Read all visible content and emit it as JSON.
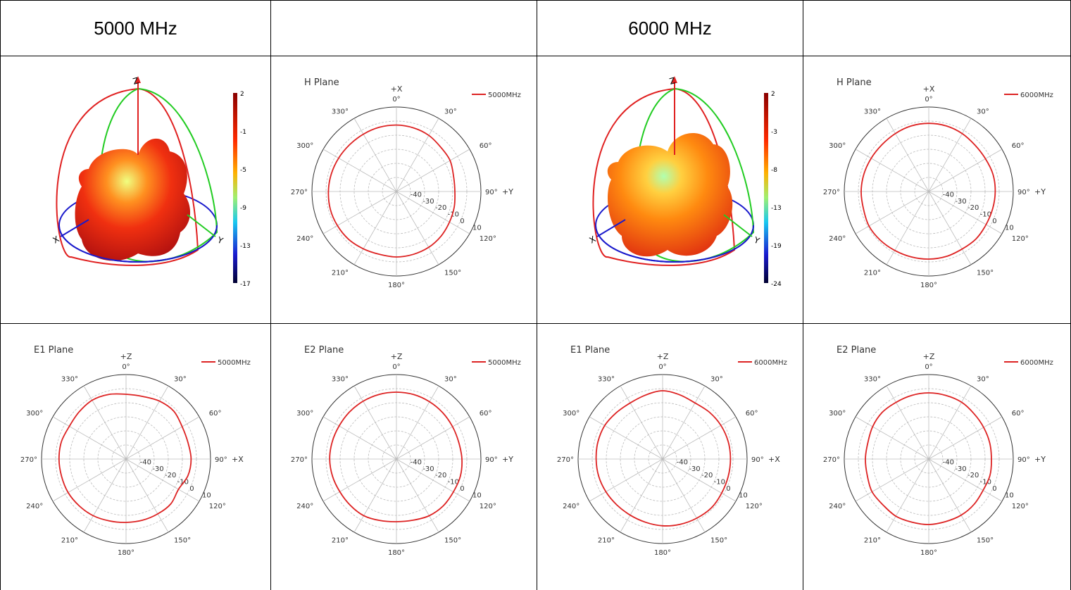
{
  "header": [
    "5000 MHz",
    "",
    "6000 MHz",
    ""
  ],
  "colors": {
    "trace": "#dd2222",
    "grid": "#bbbbbb",
    "axis": "#333333",
    "red": "#e02020",
    "green": "#22cc22",
    "blue": "#1a1acc"
  },
  "patterns3d": [
    {
      "name": "5000 MHz 3D",
      "axes": {
        "z": "Z",
        "x": "X",
        "y": "Y"
      },
      "scale": [
        "2",
        "-1",
        "-5",
        "-9",
        "-13",
        "-17"
      ]
    },
    {
      "name": "6000 MHz 3D",
      "axes": {
        "z": "Z",
        "x": "X",
        "y": "Y"
      },
      "scale": [
        "2",
        "-3",
        "-8",
        "-13",
        "-19",
        "-24"
      ]
    }
  ],
  "polar_common": {
    "angle_labels": [
      "0°",
      "30°",
      "60°",
      "90°",
      "120°",
      "150°",
      "180°",
      "210°",
      "240°",
      "270°",
      "300°",
      "330°"
    ],
    "radial_labels": [
      "-40",
      "-30",
      "-20",
      "-10",
      "0",
      "10"
    ]
  },
  "polars": [
    {
      "id": "h5000",
      "title": "H Plane",
      "top_axis": "+X",
      "right_axis": "+Y",
      "legend": "5000MHz"
    },
    {
      "id": "h6000",
      "title": "H Plane",
      "top_axis": "+X",
      "right_axis": "+Y",
      "legend": "6000MHz"
    },
    {
      "id": "e1_5000",
      "title": "E1 Plane",
      "top_axis": "+Z",
      "right_axis": "+X",
      "legend": "5000MHz"
    },
    {
      "id": "e2_5000",
      "title": "E2 Plane",
      "top_axis": "+Z",
      "right_axis": "+Y",
      "legend": "5000MHz"
    },
    {
      "id": "e1_6000",
      "title": "E1 Plane",
      "top_axis": "+Z",
      "right_axis": "+X",
      "legend": "6000MHz"
    },
    {
      "id": "e2_6000",
      "title": "E2 Plane",
      "top_axis": "+Z",
      "right_axis": "+Y",
      "legend": "6000MHz"
    }
  ],
  "chart_data": [
    {
      "type": "line",
      "title": "H Plane",
      "series": [
        {
          "name": "5000MHz",
          "theta": [
            0,
            15,
            30,
            45,
            60,
            75,
            90,
            105,
            120,
            135,
            150,
            165,
            180,
            195,
            210,
            225,
            240,
            255,
            270,
            285,
            300,
            315,
            330,
            345
          ],
          "r": [
            -2.8,
            -3.2,
            -4.0,
            -5.5,
            -6.0,
            -8.0,
            -8.5,
            -7.5,
            -6.5,
            -5.2,
            -4.2,
            -3.8,
            -3.5,
            -3.8,
            -3.0,
            -2.0,
            -1.6,
            -1.4,
            -1.7,
            -2.1,
            -2.6,
            -3.0,
            -3.0,
            -2.8
          ]
        }
      ]
    },
    {
      "type": "line",
      "title": "H Plane",
      "series": [
        {
          "name": "6000MHz",
          "theta": [
            0,
            15,
            30,
            45,
            60,
            75,
            90,
            105,
            120,
            135,
            150,
            165,
            180,
            195,
            210,
            225,
            240,
            255,
            270,
            285,
            300,
            315,
            330,
            345
          ],
          "r": [
            -1.6,
            -1.8,
            -2.5,
            -3.5,
            -3.5,
            -2.8,
            -2.8,
            -3.0,
            -3.0,
            -2.5,
            -2.8,
            -2.2,
            -2.0,
            -1.9,
            -1.7,
            -1.2,
            -1.0,
            -2.0,
            -2.0,
            -2.3,
            -2.8,
            -3.0,
            -2.5,
            -1.8
          ]
        }
      ]
    },
    {
      "type": "line",
      "title": "E1 Plane",
      "series": [
        {
          "name": "5000MHz",
          "theta": [
            0,
            15,
            30,
            45,
            60,
            75,
            90,
            105,
            120,
            135,
            150,
            165,
            180,
            195,
            210,
            225,
            240,
            255,
            270,
            285,
            300,
            315,
            330,
            345
          ],
          "r": [
            -4.0,
            -4.0,
            -2.5,
            -2.0,
            -4.0,
            -4.5,
            -3.8,
            -4.5,
            -7.0,
            -5.0,
            -5.0,
            -5.0,
            -5.0,
            -4.5,
            -3.5,
            -3.0,
            -2.5,
            -2.6,
            -2.4,
            -2.5,
            -3.5,
            -2.8,
            -1.8,
            -2.5
          ]
        }
      ]
    },
    {
      "type": "line",
      "title": "E2 Plane",
      "series": [
        {
          "name": "5000MHz",
          "theta": [
            0,
            15,
            30,
            45,
            60,
            75,
            90,
            105,
            120,
            135,
            150,
            165,
            180,
            195,
            210,
            225,
            240,
            255,
            270,
            285,
            300,
            315,
            330,
            345
          ],
          "r": [
            -2.5,
            -2.6,
            -3.0,
            -3.5,
            -4.0,
            -4.2,
            -3.5,
            -3.0,
            -3.3,
            -3.0,
            -3.5,
            -5.0,
            -5.5,
            -4.8,
            -3.6,
            -3.6,
            -3.6,
            -3.0,
            -2.6,
            -2.8,
            -3.0,
            -2.8,
            -2.6,
            -2.5
          ]
        }
      ]
    },
    {
      "type": "line",
      "title": "E1 Plane",
      "series": [
        {
          "name": "6000MHz",
          "theta": [
            0,
            15,
            30,
            45,
            60,
            75,
            90,
            105,
            120,
            135,
            150,
            165,
            180,
            195,
            210,
            225,
            240,
            255,
            270,
            285,
            300,
            315,
            330,
            345
          ],
          "r": [
            -1.5,
            -2.8,
            -4.0,
            -3.0,
            -2.2,
            -1.8,
            -1.8,
            -1.8,
            -1.6,
            -1.0,
            -1.5,
            -2.0,
            -2.6,
            -3.5,
            -4.0,
            -4.0,
            -3.5,
            -3.0,
            -2.8,
            -2.5,
            -2.5,
            -3.5,
            -4.0,
            -3.0
          ]
        }
      ]
    },
    {
      "type": "line",
      "title": "E2 Plane",
      "series": [
        {
          "name": "6000MHz",
          "theta": [
            0,
            15,
            30,
            45,
            60,
            75,
            90,
            105,
            120,
            135,
            150,
            165,
            180,
            195,
            210,
            225,
            240,
            255,
            270,
            285,
            300,
            315,
            330,
            345
          ],
          "r": [
            -3.0,
            -3.2,
            -3.4,
            -4.5,
            -5.0,
            -5.2,
            -5.5,
            -5.0,
            -5.5,
            -4.5,
            -4.0,
            -4.0,
            -3.5,
            -3.6,
            -3.2,
            -4.0,
            -3.5,
            -4.8,
            -5.0,
            -5.2,
            -4.0,
            -3.2,
            -3.5,
            -3.2
          ]
        }
      ]
    }
  ]
}
